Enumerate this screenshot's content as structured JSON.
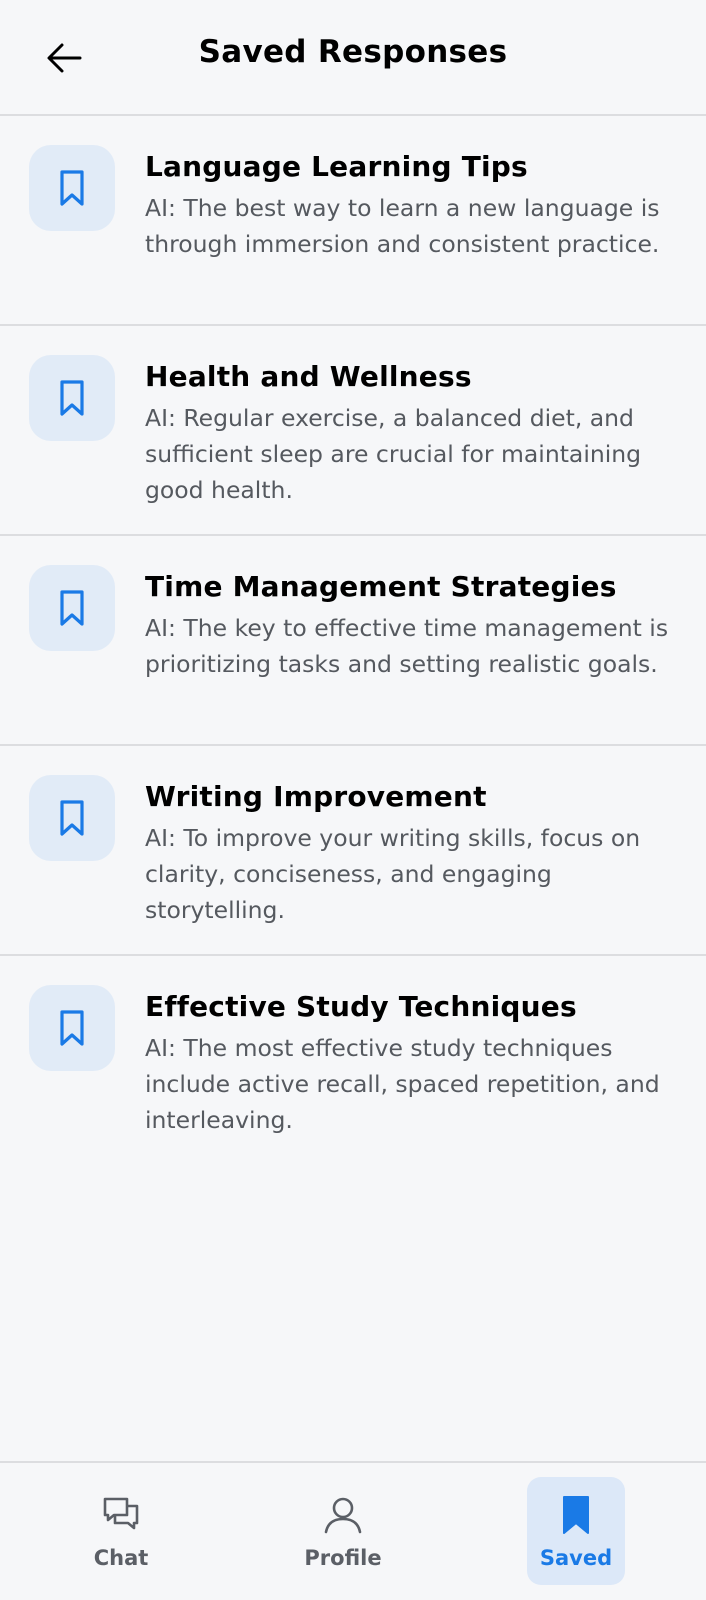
{
  "header": {
    "title": "Saved Responses",
    "back_icon": "arrow-left-icon"
  },
  "saved_items": [
    {
      "title": "Language Learning Tips",
      "text": "AI: The best way to learn a new language is through immersion and consistent practice.",
      "icon": "bookmark-icon"
    },
    {
      "title": "Health and Wellness",
      "text": "AI: Regular exercise, a balanced diet, and sufficient sleep are crucial for maintaining good health.",
      "icon": "bookmark-icon"
    },
    {
      "title": "Time Management Strategies",
      "text": "AI: The key to effective time management is prioritizing tasks and setting realistic goals.",
      "icon": "bookmark-icon"
    },
    {
      "title": "Writing Improvement",
      "text": "AI: To improve your writing skills, focus on clarity, conciseness, and engaging storytelling.",
      "icon": "bookmark-icon"
    },
    {
      "title": "Effective Study Techniques",
      "text": "AI: The most effective study techniques include active recall, spaced repetition, and interleaving.",
      "icon": "bookmark-icon"
    }
  ],
  "bottom_nav": [
    {
      "label": "Chat",
      "icon": "chat-bubbles-icon",
      "active": false
    },
    {
      "label": "Profile",
      "icon": "user-icon",
      "active": false
    },
    {
      "label": "Saved",
      "icon": "bookmark-icon",
      "active": true
    }
  ],
  "colors": {
    "background": "#f6f7f9",
    "accent": "#1a7ae6",
    "icon_tile": "#e1ebf7",
    "divider": "#dcdde0",
    "secondary_text": "#55595f"
  }
}
